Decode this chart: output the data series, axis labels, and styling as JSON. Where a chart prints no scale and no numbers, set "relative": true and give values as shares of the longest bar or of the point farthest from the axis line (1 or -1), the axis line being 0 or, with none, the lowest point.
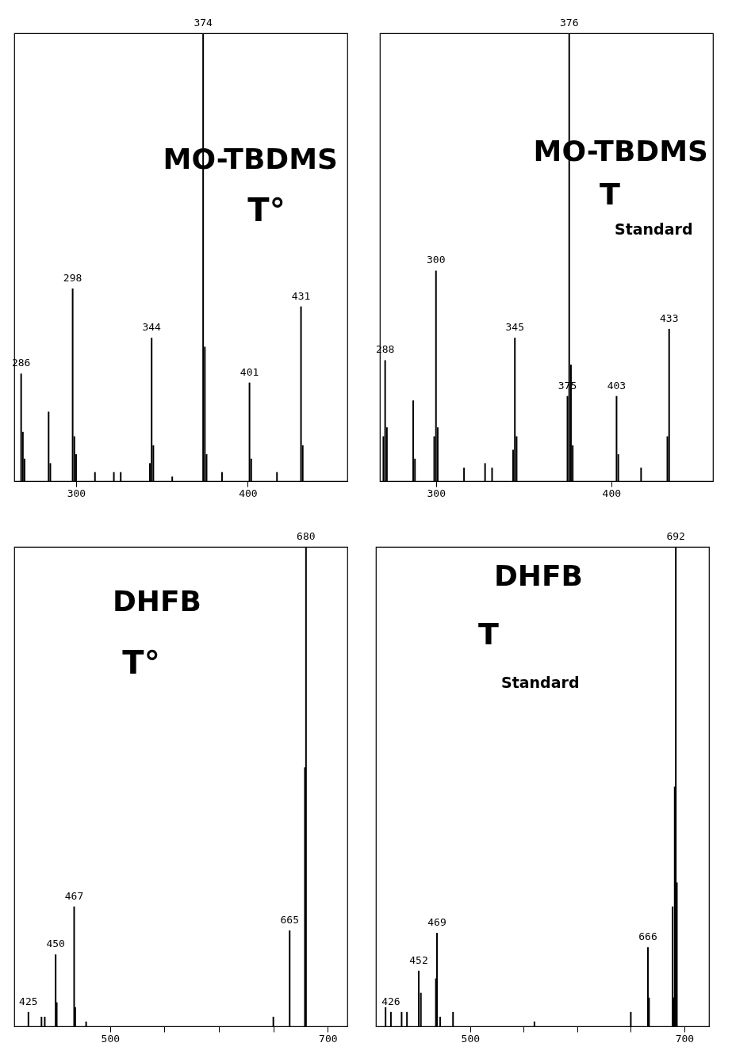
{
  "chart_data": [
    {
      "type": "bar",
      "relative": true,
      "title": "MO-TBDMS",
      "color": "#000000",
      "xlim": [
        264,
        458
      ],
      "xticks": [
        300,
        400
      ],
      "annotations": [
        "T°",
        {
          "text": "286",
          "x": 268,
          "y": 0.24
        },
        {
          "text": "298",
          "x": 298,
          "y": 0.43
        },
        {
          "text": "344",
          "x": 344,
          "y": 0.32
        },
        {
          "text": "374",
          "x": 374,
          "y": 1
        },
        {
          "text": "401",
          "x": 401,
          "y": 0.22
        },
        {
          "text": "431",
          "x": 431,
          "y": 0.39
        }
      ],
      "x": [
        268,
        269,
        270,
        284,
        285,
        298,
        299,
        300,
        311,
        322,
        326,
        343,
        344,
        345,
        356,
        374,
        375,
        376,
        385,
        401,
        402,
        417,
        431,
        432
      ],
      "values": [
        0.24,
        0.11,
        0.05,
        0.155,
        0.04,
        0.43,
        0.1,
        0.06,
        0.02,
        0.02,
        0.02,
        0.04,
        0.32,
        0.08,
        0.01,
        1,
        0.3,
        0.06,
        0.02,
        0.22,
        0.05,
        0.02,
        0.39,
        0.08
      ]
    },
    {
      "type": "bar",
      "relative": true,
      "title": "MO-TBDMS",
      "color": "#000000",
      "xlim": [
        268,
        458
      ],
      "xticks": [
        300,
        400
      ],
      "annotations": [
        "T",
        "Standard",
        {
          "text": "288",
          "x": 271,
          "y": 0.27
        },
        {
          "text": "300",
          "x": 300,
          "y": 0.47
        },
        {
          "text": "345",
          "x": 345,
          "y": 0.32
        },
        {
          "text": "375",
          "x": 375,
          "y": 0.19
        },
        {
          "text": "376",
          "x": 376,
          "y": 1
        },
        {
          "text": "403",
          "x": 403,
          "y": 0.19
        },
        {
          "text": "433",
          "x": 433,
          "y": 0.34
        }
      ],
      "x": [
        270,
        271,
        272,
        287,
        288,
        299,
        300,
        301,
        316,
        328,
        332,
        344,
        345,
        346,
        375,
        376,
        377,
        378,
        403,
        404,
        417,
        432,
        433
      ],
      "values": [
        0.1,
        0.27,
        0.12,
        0.18,
        0.05,
        0.1,
        0.47,
        0.12,
        0.03,
        0.04,
        0.03,
        0.07,
        0.32,
        0.1,
        0.19,
        1,
        0.26,
        0.08,
        0.19,
        0.06,
        0.03,
        0.1,
        0.34
      ]
    },
    {
      "type": "bar",
      "relative": true,
      "title": "DHFB",
      "color": "#000000",
      "xlim": [
        412,
        718
      ],
      "xticks": [
        500,
        {
          "value": 550,
          "label": null
        },
        {
          "value": 600,
          "label": null
        },
        {
          "value": 650,
          "label": null
        },
        700
      ],
      "annotations": [
        "T°",
        {
          "text": "425",
          "x": 425,
          "y": 0.03
        },
        {
          "text": "450",
          "x": 450,
          "y": 0.15
        },
        {
          "text": "467",
          "x": 467,
          "y": 0.25
        },
        {
          "text": "665",
          "x": 665,
          "y": 0.2
        },
        {
          "text": "680",
          "x": 680,
          "y": 1
        }
      ],
      "x": [
        425,
        437,
        440,
        450,
        451,
        467,
        468,
        478,
        650,
        665,
        679,
        680
      ],
      "values": [
        0.03,
        0.02,
        0.02,
        0.15,
        0.05,
        0.25,
        0.04,
        0.01,
        0.02,
        0.2,
        0.54,
        1
      ]
    },
    {
      "type": "bar",
      "relative": true,
      "title": "DHFB",
      "color": "#000000",
      "xlim": [
        412,
        723
      ],
      "xticks": [
        500,
        {
          "value": 550,
          "label": null
        },
        {
          "value": 600,
          "label": null
        },
        {
          "value": 650,
          "label": null
        },
        700
      ],
      "annotations": [
        "T",
        "Standard",
        {
          "text": "426",
          "x": 426,
          "y": 0.03
        },
        {
          "text": "452",
          "x": 452,
          "y": 0.116
        },
        {
          "text": "469",
          "x": 469,
          "y": 0.195
        },
        {
          "text": "666",
          "x": 666,
          "y": 0.165
        },
        {
          "text": "692",
          "x": 692,
          "y": 1
        }
      ],
      "x": [
        421,
        426,
        436,
        441,
        452,
        454,
        468,
        469,
        472,
        484,
        560,
        650,
        666,
        667,
        689,
        690,
        691,
        692,
        693
      ],
      "values": [
        0.04,
        0.03,
        0.03,
        0.03,
        0.116,
        0.07,
        0.1,
        0.195,
        0.02,
        0.03,
        0.01,
        0.03,
        0.165,
        0.06,
        0.25,
        0.06,
        0.5,
        1,
        0.3
      ]
    }
  ]
}
